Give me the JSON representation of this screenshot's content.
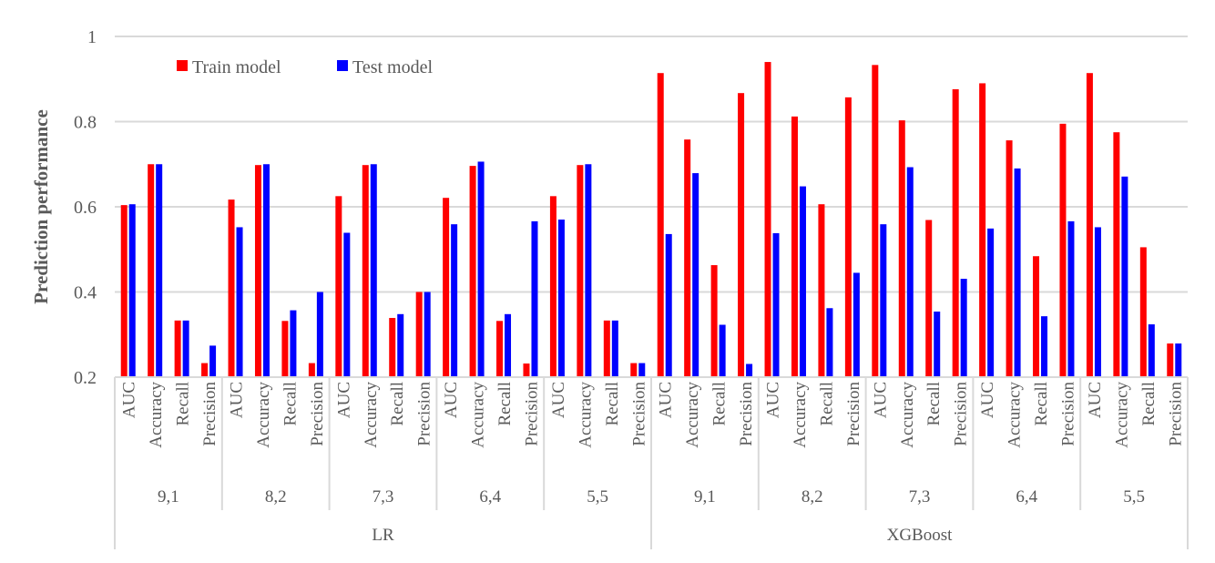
{
  "chart_data": {
    "type": "bar",
    "title": "",
    "xlabel": "",
    "ylabel": "Prediction performance",
    "ylim": [
      0.2,
      1.0
    ],
    "yticks": [
      "0.2",
      "0.4",
      "0.6",
      "0.8",
      "1"
    ],
    "ytick_values": [
      0.2,
      0.4,
      0.6,
      0.8,
      1.0
    ],
    "grid": true,
    "legend_position": "top-left",
    "colors": {
      "train": "#ff0000",
      "test": "#0000ff"
    },
    "models": [
      "LR",
      "XGBoost"
    ],
    "splits": [
      "9,1",
      "8,2",
      "7,3",
      "6,4",
      "5,5"
    ],
    "metrics": [
      "AUC",
      "Accuracy",
      "Recall",
      "Precision"
    ],
    "series": [
      {
        "name": "Train model",
        "key": "train",
        "values": {
          "LR": {
            "9,1": [
              0.604,
              0.7,
              0.333,
              0.233
            ],
            "8,2": [
              0.617,
              0.698,
              0.332,
              0.233
            ],
            "7,3": [
              0.625,
              0.698,
              0.339,
              0.4
            ],
            "6,4": [
              0.621,
              0.696,
              0.332,
              0.232
            ],
            "5,5": [
              0.625,
              0.698,
              0.333,
              0.233
            ]
          },
          "XGBoost": {
            "9,1": [
              0.914,
              0.758,
              0.463,
              0.867
            ],
            "8,2": [
              0.94,
              0.812,
              0.606,
              0.857
            ],
            "7,3": [
              0.933,
              0.803,
              0.569,
              0.876
            ],
            "6,4": [
              0.89,
              0.756,
              0.484,
              0.795
            ],
            "5,5": [
              0.914,
              0.775,
              0.505,
              0.279
            ]
          }
        }
      },
      {
        "name": "Test model",
        "key": "test",
        "values": {
          "LR": {
            "9,1": [
              0.606,
              0.7,
              0.333,
              0.274
            ],
            "8,2": [
              0.552,
              0.7,
              0.357,
              0.4
            ],
            "7,3": [
              0.539,
              0.7,
              0.348,
              0.4
            ],
            "6,4": [
              0.559,
              0.706,
              0.348,
              0.566
            ],
            "5,5": [
              0.57,
              0.7,
              0.333,
              0.233
            ]
          },
          "XGBoost": {
            "9,1": [
              0.536,
              0.679,
              0.323,
              0.231
            ],
            "8,2": [
              0.538,
              0.648,
              0.362,
              0.445
            ],
            "7,3": [
              0.559,
              0.693,
              0.354,
              0.431
            ],
            "6,4": [
              0.549,
              0.69,
              0.343,
              0.566
            ],
            "5,5": [
              0.552,
              0.671,
              0.324,
              0.279
            ]
          }
        }
      }
    ]
  }
}
